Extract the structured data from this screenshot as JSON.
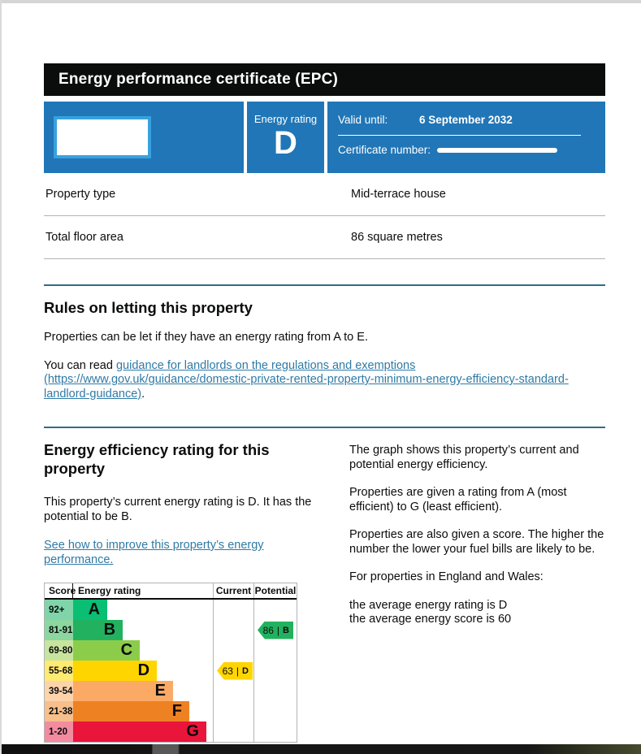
{
  "header": {
    "title": "Energy performance certificate (EPC)"
  },
  "banner": {
    "background_color": "#2176b7",
    "energy_rating_label": "Energy rating",
    "energy_rating_value": "D",
    "valid_until_label": "Valid until:",
    "valid_until_value": "6 September 2032",
    "certificate_number_label": "Certificate number:"
  },
  "summary": {
    "rows": [
      {
        "label": "Property type",
        "value": "Mid-terrace house"
      },
      {
        "label": "Total floor area",
        "value": "86 square metres"
      }
    ]
  },
  "rules": {
    "heading": "Rules on letting this property",
    "intro": "Properties can be let if they have an energy rating from A to E.",
    "read_prefix": "You can read ",
    "link_text": "guidance for landlords on the regulations and exemptions (https://www.gov.uk/guidance/domestic-private-rented-property-minimum-energy-efficiency-standard-landlord-guidance)",
    "read_suffix": "."
  },
  "efficiency": {
    "heading": "Energy efficiency rating for this property",
    "summary": "This property’s current energy rating is D. It has the potential to be B.",
    "improve_link": "See how to improve this property’s energy performance.",
    "right_paragraphs": [
      "The graph shows this property’s current and potential energy efficiency.",
      "Properties are given a rating from A (most efficient) to G (least efficient).",
      "Properties are also given a score. The higher the number the lower your fuel bills are likely to be.",
      "For properties in England and Wales:"
    ],
    "average_rating_line": "the average energy rating is D",
    "average_score_line": "the average energy score is 60"
  },
  "chart_data": {
    "type": "bar",
    "title": "Energy efficiency rating chart",
    "columns": [
      "Score",
      "Energy rating",
      "Current",
      "Potential"
    ],
    "bands": [
      {
        "range": "92+",
        "letter": "A",
        "color": "#0abe73",
        "tint": "#7fd5a9",
        "width_pct": 24.5
      },
      {
        "range": "81-91",
        "letter": "B",
        "color": "#22b25f",
        "tint": "#8cd6a0",
        "width_pct": 35.5
      },
      {
        "range": "69-80",
        "letter": "C",
        "color": "#8ccc4b",
        "tint": "#c8e59e",
        "width_pct": 47.7
      },
      {
        "range": "55-68",
        "letter": "D",
        "color": "#ffd500",
        "tint": "#ffea72",
        "width_pct": 59.9
      },
      {
        "range": "39-54",
        "letter": "E",
        "color": "#fbaa65",
        "tint": "#fdd3ab",
        "width_pct": 71.5
      },
      {
        "range": "21-38",
        "letter": "F",
        "color": "#ee8122",
        "tint": "#f6bf8c",
        "width_pct": 83.1
      },
      {
        "range": "1-20",
        "letter": "G",
        "color": "#e9153b",
        "tint": "#f38ba0",
        "width_pct": 95.3
      }
    ],
    "current": {
      "score": "63",
      "letter": "D",
      "row_index": 3,
      "color": "#ffd500"
    },
    "potential": {
      "score": "86",
      "letter": "B",
      "row_index": 1,
      "color": "#22b25f"
    }
  }
}
